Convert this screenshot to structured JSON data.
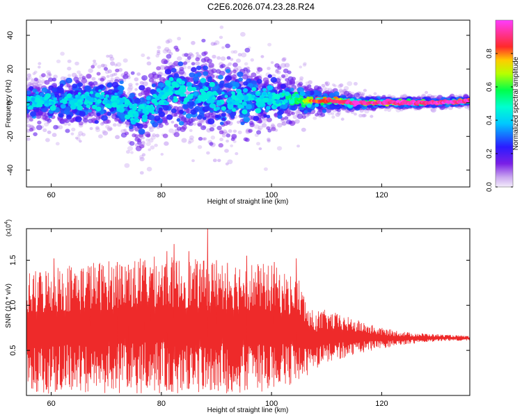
{
  "page_title": "C2E6.2026.074.23.28.R24",
  "colors": {
    "snr_line": "#ee2a2a",
    "colormap": [
      "#e6d6f5",
      "#8a2be2",
      "#2d1bff",
      "#00e5ff",
      "#00ff66",
      "#c8ff00",
      "#ff2a2a",
      "#ff3cff"
    ]
  },
  "chart_data": [
    {
      "type": "heatmap",
      "title": "",
      "xlabel": "Height of straight line (km)",
      "ylabel": "Frequency (Hz)",
      "xlim": [
        55.5,
        136
      ],
      "ylim": [
        -50,
        49
      ],
      "x_ticks": [
        "60",
        "80",
        "100",
        "120"
      ],
      "x_tick_values": [
        60,
        80,
        100,
        120
      ],
      "y_ticks": [
        "40",
        "20",
        "0",
        "-20",
        "-40"
      ],
      "y_tick_values": [
        40,
        20,
        0,
        -20,
        -40
      ],
      "grid": false,
      "colorbar": {
        "label": "Normalized spectral amplitude",
        "range": [
          0,
          1
        ],
        "ticks": [
          "0.0",
          "0.2",
          "0.4",
          "0.6",
          "0.8"
        ],
        "tick_values": [
          0.0,
          0.2,
          0.4,
          0.6,
          0.8
        ]
      },
      "centerline": {
        "x": [
          55.5,
          60,
          65,
          70,
          73,
          75,
          77,
          80,
          82,
          85,
          88,
          90,
          95,
          100,
          103,
          105,
          107,
          110,
          115,
          120,
          125,
          130,
          136
        ],
        "y": [
          1,
          0,
          1,
          2,
          0,
          -6,
          -5,
          3,
          8,
          4,
          6,
          3,
          2,
          2,
          3,
          2,
          1,
          1,
          0,
          0,
          0,
          0,
          1
        ]
      },
      "spread_hz": {
        "x": [
          55.5,
          70,
          80,
          90,
          100,
          105,
          108,
          115,
          120,
          136
        ],
        "y": [
          7,
          8,
          11,
          12,
          9,
          6,
          4,
          2.5,
          1.5,
          1.2
        ]
      },
      "peak_amplitude": {
        "x": [
          55.5,
          70,
          100,
          105,
          108,
          115,
          120,
          136
        ],
        "y": [
          0.45,
          0.45,
          0.45,
          0.6,
          0.9,
          1.0,
          1.0,
          1.0
        ]
      }
    },
    {
      "type": "line",
      "title": "",
      "xlabel": "Height of straight line (km)",
      "ylabel": "SNR (10 * v/v)",
      "y_multiplier": "(x10",
      "y_multiplier_exp": "4",
      "y_multiplier_close": ")",
      "xlim": [
        55.5,
        136
      ],
      "ylim": [
        0,
        1.85
      ],
      "x_ticks": [
        "60",
        "80",
        "100",
        "120"
      ],
      "x_tick_values": [
        60,
        80,
        100,
        120
      ],
      "y_ticks": [
        "0.5",
        "1.0",
        "1.5"
      ],
      "y_tick_values": [
        0.5,
        1.0,
        1.5
      ],
      "grid": false,
      "series": [
        {
          "color": "#ee2a2a",
          "envelope": {
            "x": [
              55.5,
              60,
              70,
              80,
              88,
              95,
              100,
              105,
              107,
              110,
              115,
              120,
              125,
              130,
              136
            ],
            "upper": [
              1.35,
              1.45,
              1.5,
              1.55,
              1.5,
              1.5,
              1.45,
              1.3,
              0.95,
              0.95,
              0.85,
              0.75,
              0.7,
              0.68,
              0.66
            ],
            "lower": [
              0.02,
              0.02,
              0.02,
              0.02,
              0.02,
              0.02,
              0.05,
              0.15,
              0.25,
              0.35,
              0.45,
              0.52,
              0.57,
              0.6,
              0.61
            ]
          },
          "peaks": {
            "x": [
              60.5,
              67,
              72,
              74,
              77,
              78,
              81,
              82.3,
              85,
              88.4,
              90,
              92,
              95.5,
              100.5,
              104.5
            ],
            "y": [
              1.52,
              1.42,
              1.48,
              1.45,
              1.5,
              1.42,
              1.6,
              1.68,
              1.6,
              1.85,
              1.5,
              1.47,
              1.55,
              1.48,
              1.52
            ]
          }
        }
      ]
    }
  ]
}
